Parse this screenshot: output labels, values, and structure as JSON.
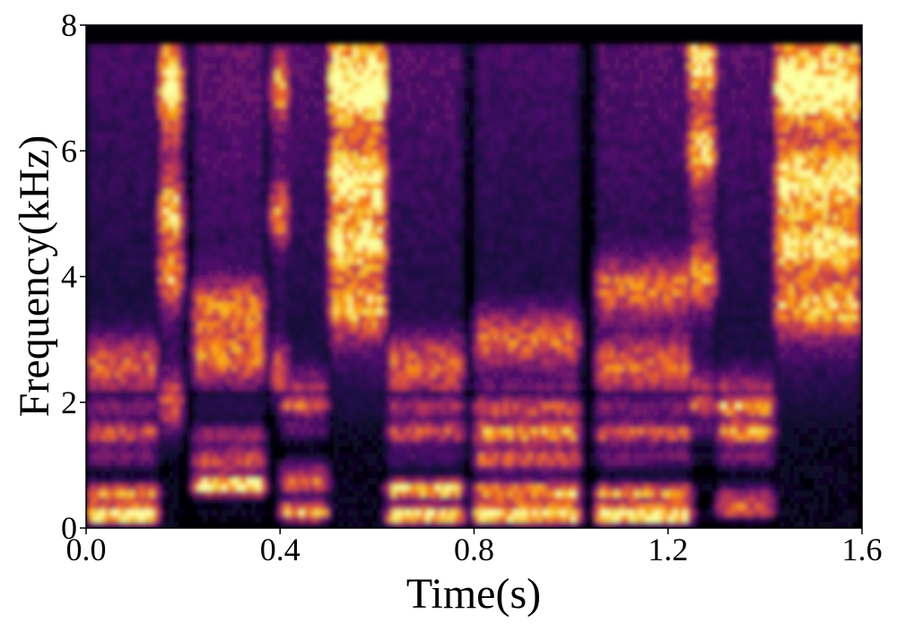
{
  "chart_data": {
    "type": "heatmap",
    "title": "",
    "xlabel": "Time(s)",
    "ylabel": "Frequency(kHz)",
    "xlim": [
      0.0,
      1.6
    ],
    "ylim": [
      0,
      8
    ],
    "x_ticks": [
      "0.0",
      "0.4",
      "0.8",
      "1.2",
      "1.6"
    ],
    "y_ticks": [
      "0",
      "2",
      "4",
      "6",
      "8"
    ],
    "grid": false,
    "legend": "none",
    "colormap": "inferno",
    "colors": [
      "#000004",
      "#1b0c41",
      "#4a0c6b",
      "#781c6d",
      "#a52c60",
      "#cf4446",
      "#ed6925",
      "#fb9b06",
      "#f7d13d",
      "#fcffa4"
    ],
    "spectral_energy": {
      "description_units": "relative intensity 0-1",
      "segments": [
        {
          "t_start": 0.0,
          "t_end": 0.15,
          "formants_khz": [
            0.2,
            0.5,
            1.5,
            2.6
          ],
          "high_band_level": 0.2
        },
        {
          "t_start": 0.15,
          "t_end": 0.2,
          "formants_khz": [
            2.0,
            4.0,
            5.0,
            7.0
          ],
          "high_band_level": 0.7
        },
        {
          "t_start": 0.22,
          "t_end": 0.37,
          "formants_khz": [
            0.7,
            1.2,
            2.7,
            3.5
          ],
          "high_band_level": 0.3
        },
        {
          "t_start": 0.38,
          "t_end": 0.42,
          "formants_khz": [
            2.5,
            5.0,
            7.0
          ],
          "high_band_level": 0.35
        },
        {
          "t_start": 0.4,
          "t_end": 0.5,
          "formants_khz": [
            0.3,
            0.8,
            2.0
          ],
          "high_band_level": 0.25
        },
        {
          "t_start": 0.5,
          "t_end": 0.62,
          "formants_khz": [
            3.5,
            4.5,
            5.5,
            7.0
          ],
          "high_band_level": 0.9
        },
        {
          "t_start": 0.62,
          "t_end": 0.78,
          "formants_khz": [
            0.2,
            0.6,
            1.6,
            2.6
          ],
          "high_band_level": 0.25
        },
        {
          "t_start": 0.8,
          "t_end": 1.02,
          "formants_khz": [
            0.2,
            0.5,
            1.2,
            1.8,
            3.0
          ],
          "high_band_level": 0.2
        },
        {
          "t_start": 1.05,
          "t_end": 1.25,
          "formants_khz": [
            0.2,
            0.5,
            1.5,
            2.6,
            3.8
          ],
          "high_band_level": 0.25
        },
        {
          "t_start": 1.24,
          "t_end": 1.3,
          "formants_khz": [
            2.0,
            4.0,
            6.0,
            7.4
          ],
          "high_band_level": 0.55
        },
        {
          "t_start": 1.3,
          "t_end": 1.42,
          "formants_khz": [
            0.4,
            1.5,
            2.0
          ],
          "high_band_level": 0.25
        },
        {
          "t_start": 1.42,
          "t_end": 1.6,
          "formants_khz": [
            3.5,
            4.5,
            5.5,
            7.0
          ],
          "high_band_level": 0.85
        }
      ]
    }
  }
}
